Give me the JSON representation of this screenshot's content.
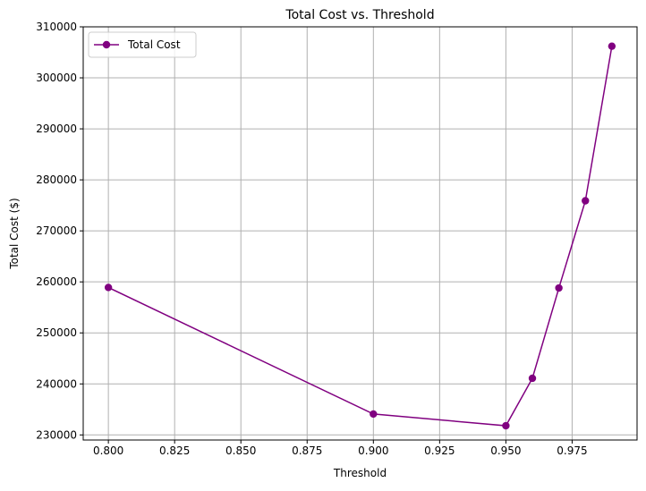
{
  "chart_data": {
    "type": "line",
    "title": "Total Cost vs. Threshold",
    "xlabel": "Threshold",
    "ylabel": "Total Cost ($)",
    "xlim": [
      0.7905,
      0.9995
    ],
    "ylim": [
      229000,
      310000
    ],
    "x_ticks": [
      0.8,
      0.825,
      0.85,
      0.875,
      0.9,
      0.925,
      0.95,
      0.975
    ],
    "x_tick_labels": [
      "0.800",
      "0.825",
      "0.850",
      "0.875",
      "0.900",
      "0.925",
      "0.950",
      "0.975"
    ],
    "y_ticks": [
      230000,
      240000,
      250000,
      260000,
      270000,
      280000,
      290000,
      300000,
      310000
    ],
    "y_tick_labels": [
      "230000",
      "240000",
      "250000",
      "260000",
      "270000",
      "280000",
      "290000",
      "300000",
      "310000"
    ],
    "grid": true,
    "legend_position": "top-left",
    "series": [
      {
        "name": "Total Cost",
        "color": "#800080",
        "marker": "circle",
        "x": [
          0.8,
          0.9,
          0.95,
          0.96,
          0.97,
          0.98,
          0.99
        ],
        "y": [
          258900,
          234100,
          231800,
          241100,
          258800,
          275900,
          306200
        ]
      }
    ]
  }
}
